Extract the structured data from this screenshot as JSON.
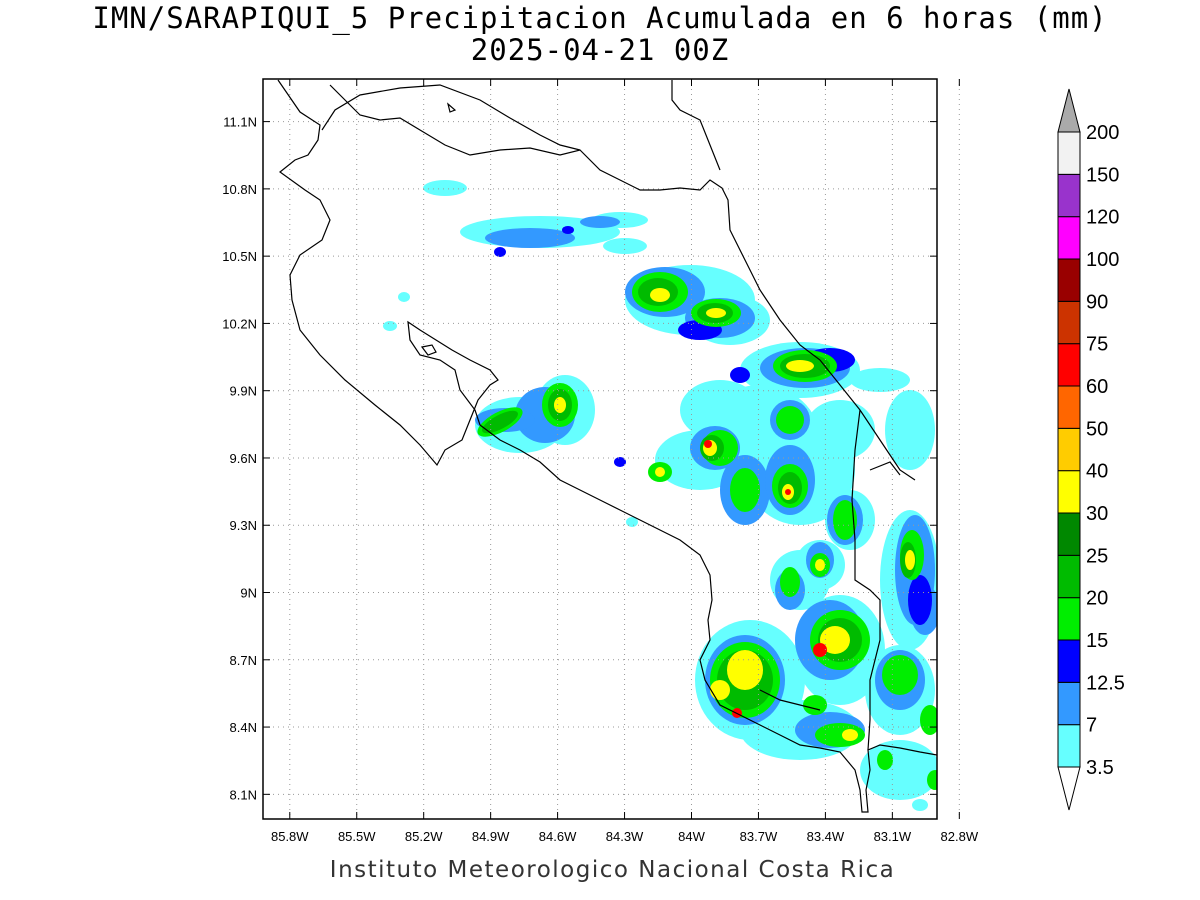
{
  "title": {
    "line1": "IMN/SARAPIQUI_5 Precipitacion Acumulada en 6 horas (mm)",
    "line2": "2025-04-21 00Z"
  },
  "credit": "Instituto Meteorologico Nacional Costa Rica",
  "map": {
    "lon_range": [
      -85.92,
      -82.9
    ],
    "lat_range": [
      7.99,
      11.29
    ],
    "lon_ticks": [
      "85.8W",
      "85.5W",
      "85.2W",
      "84.9W",
      "84.6W",
      "84.3W",
      "84W",
      "83.7W",
      "83.4W",
      "83.1W",
      "82.8W"
    ],
    "lat_ticks": [
      "11.1N",
      "10.8N",
      "10.5N",
      "10.2N",
      "9.9N",
      "9.6N",
      "9.3N",
      "9N",
      "8.7N",
      "8.4N",
      "8.1N"
    ],
    "grid": true
  },
  "colorbar": {
    "labels": [
      "3.5",
      "7",
      "12.5",
      "15",
      "20",
      "25",
      "30",
      "40",
      "50",
      "60",
      "75",
      "90",
      "100",
      "120",
      "150",
      "200"
    ],
    "colors": [
      "#66ffff",
      "#3399ff",
      "#0000ff",
      "#00ee00",
      "#00bb00",
      "#008800",
      "#ffff00",
      "#ffcc00",
      "#ff6600",
      "#ff0000",
      "#cc3300",
      "#990000",
      "#ff00ff",
      "#9933cc",
      "#f2f2f2"
    ],
    "overflow_color": "#aaaaaa",
    "underflow_color": "#ffffff"
  }
}
